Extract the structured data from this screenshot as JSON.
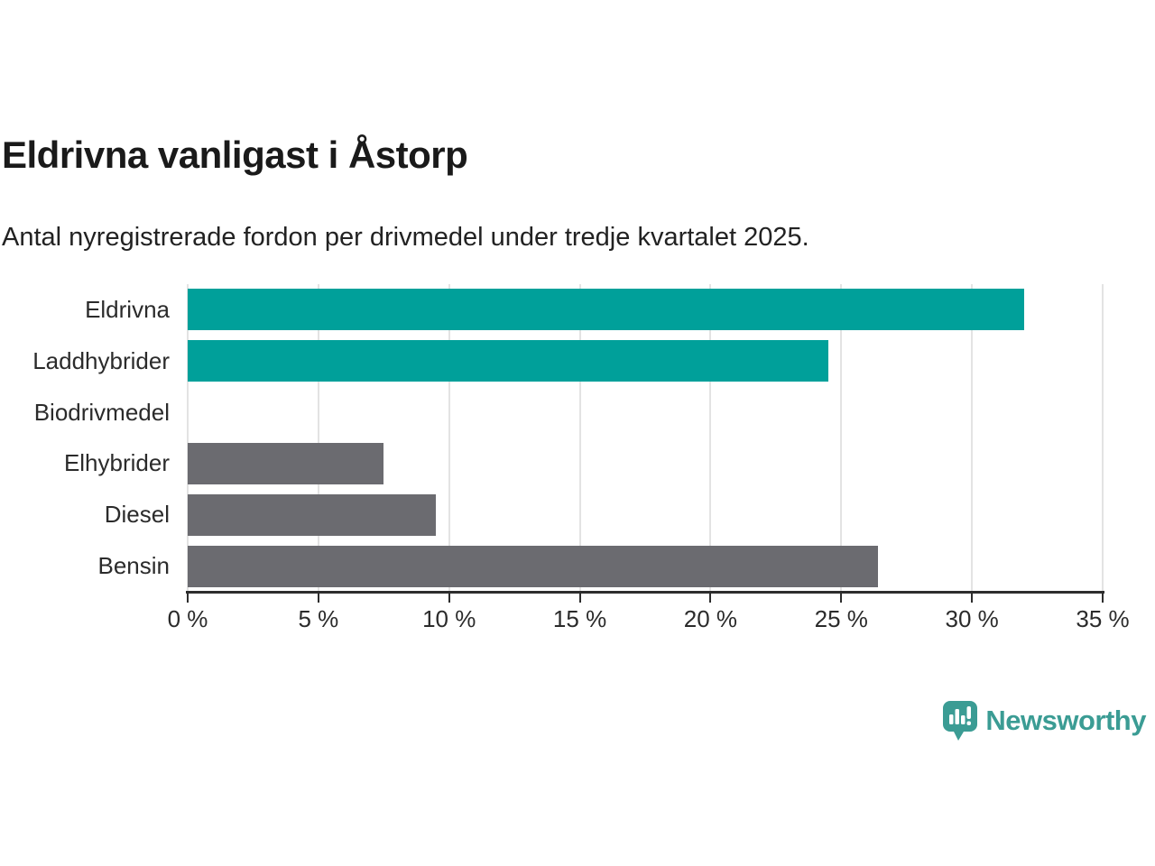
{
  "header": {
    "title": "Eldrivna vanligast i Åstorp",
    "subtitle": "Antal nyregistrerade fordon per drivmedel under tredje kvartalet 2025."
  },
  "chart_data": {
    "type": "bar",
    "orientation": "horizontal",
    "title": "Eldrivna vanligast i Åstorp",
    "subtitle": "Antal nyregistrerade fordon per drivmedel under tredje kvartalet 2025.",
    "categories": [
      "Eldrivna",
      "Laddhybrider",
      "Biodrivmedel",
      "Elhybrider",
      "Diesel",
      "Bensin"
    ],
    "values": [
      32,
      24.5,
      0,
      7.5,
      9.5,
      26.4
    ],
    "unit": "%",
    "bar_colors": [
      "#00A09A",
      "#00A09A",
      "#6B6B70",
      "#6B6B70",
      "#6B6B70",
      "#6B6B70"
    ],
    "xlabel": "",
    "ylabel": "",
    "xlim": [
      0,
      35
    ],
    "x_ticks": [
      0,
      5,
      10,
      15,
      20,
      25,
      30,
      35
    ],
    "x_tick_suffix": " %",
    "grid": true,
    "gridline_color": "#e3e3e3",
    "axis_color": "#2d2d2d",
    "legend": "none"
  },
  "branding": {
    "name": "Newsworthy",
    "color": "#3B9C94"
  }
}
